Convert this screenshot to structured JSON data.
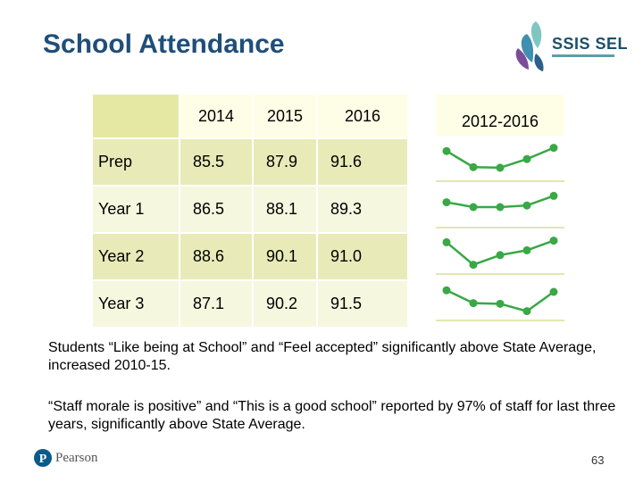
{
  "slide": {
    "title": "School Attendance",
    "page_number": "63"
  },
  "logo": {
    "text": "SSIS SEL"
  },
  "footer": {
    "brand": "Pearson"
  },
  "table": {
    "headers": [
      "",
      "2014",
      "2015",
      "2016"
    ],
    "sparkline_header": "2012-2016",
    "rows": [
      {
        "label": "Prep",
        "values": [
          "85.5",
          "87.9",
          "91.6"
        ]
      },
      {
        "label": "Year 1",
        "values": [
          "86.5",
          "88.1",
          "89.3"
        ]
      },
      {
        "label": "Year 2",
        "values": [
          "88.6",
          "90.1",
          "91.0"
        ]
      },
      {
        "label": "Year 3",
        "values": [
          "87.1",
          "90.2",
          "91.5"
        ]
      }
    ]
  },
  "paragraphs": [
    "Students “Like being at School” and “Feel accepted” significantly above State Average, increased 2010-15.",
    "“Staff morale is positive” and “This is a good school” reported by 97% of staff for last three years, significantly above State Average."
  ],
  "colors": {
    "title": "#1f4e79",
    "row_odd": "#e8ebb8",
    "row_even": "#f6f7df",
    "sparkline": "#39a845"
  },
  "chart_data": [
    {
      "type": "line",
      "series": [
        {
          "values": [
            0.2,
            0.7,
            0.72,
            0.45,
            0.1
          ]
        }
      ]
    },
    {
      "type": "line",
      "series": [
        {
          "values": [
            0.35,
            0.5,
            0.5,
            0.45,
            0.15
          ]
        }
      ]
    },
    {
      "type": "line",
      "series": [
        {
          "values": [
            0.15,
            0.85,
            0.55,
            0.4,
            0.1
          ]
        }
      ]
    },
    {
      "type": "line",
      "series": [
        {
          "values": [
            0.2,
            0.6,
            0.62,
            0.85,
            0.25
          ]
        }
      ]
    }
  ]
}
